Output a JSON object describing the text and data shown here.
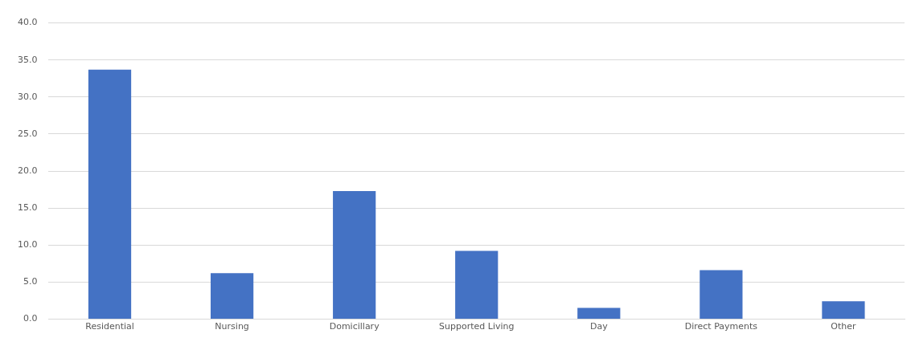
{
  "chart_data": {
    "type": "bar",
    "categories": [
      "Residential",
      "Nursing",
      "Domicillary",
      "Supported Living",
      "Day",
      "Direct Payments",
      "Other"
    ],
    "values": [
      33.7,
      6.2,
      17.3,
      9.2,
      1.5,
      6.6,
      2.4
    ],
    "color": "#4472c4",
    "ylim": [
      0,
      40
    ],
    "yticks": [
      {
        "value": 0,
        "label": "0.0"
      },
      {
        "value": 5,
        "label": "5.0"
      },
      {
        "value": 10,
        "label": "10.0"
      },
      {
        "value": 15,
        "label": "15.0"
      },
      {
        "value": 20,
        "label": "20.0"
      },
      {
        "value": 25,
        "label": "25.0"
      },
      {
        "value": 30,
        "label": "30.0"
      },
      {
        "value": 35,
        "label": "35.0"
      },
      {
        "value": 40,
        "label": "40.0"
      }
    ],
    "grid": "y",
    "legend": false
  }
}
